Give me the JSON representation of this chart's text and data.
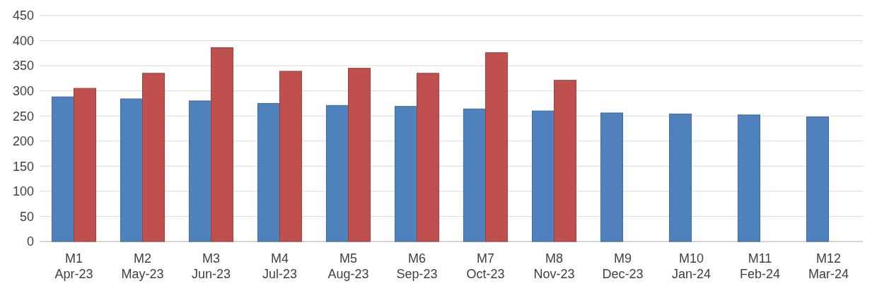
{
  "chart_data": {
    "type": "bar",
    "categories": [
      "M1\nApr-23",
      "M2\nMay-23",
      "M3\nJun-23",
      "M4\nJul-23",
      "M5\nAug-23",
      "M6\nSep-23",
      "M7\nOct-23",
      "M8\nNov-23",
      "M9\nDec-23",
      "M10\nJan-24",
      "M11\nFeb-24",
      "M12\nMar-24"
    ],
    "series": [
      {
        "color": "#4f81bd",
        "values": [
          288,
          284,
          280,
          275,
          271,
          269,
          264,
          260,
          256,
          254,
          252,
          248
        ]
      },
      {
        "color": "#c0504d",
        "values": [
          305,
          335,
          386,
          339,
          345,
          335,
          376,
          321,
          null,
          null,
          null,
          null
        ]
      }
    ],
    "ylim": [
      0,
      450
    ],
    "yticks": [
      0,
      50,
      100,
      150,
      200,
      250,
      300,
      350,
      400,
      450
    ],
    "grid": "y"
  }
}
